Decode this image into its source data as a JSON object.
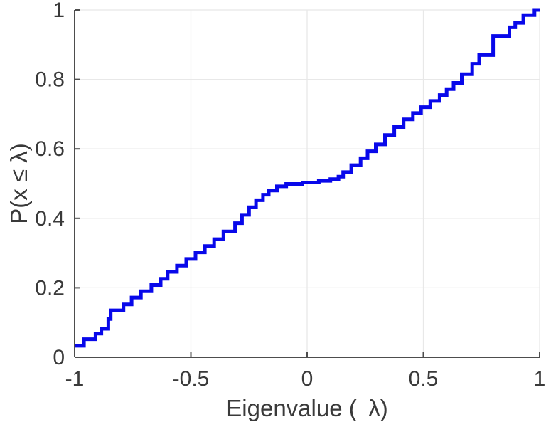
{
  "figure": {
    "background": "#ffffff"
  },
  "chart_data": {
    "type": "line",
    "subtype": "empirical-cdf-stairs",
    "title": "",
    "xlabel": "Eigenvalue ( λ)",
    "ylabel": "P(x ≤ λ)",
    "xlim": [
      -1,
      1
    ],
    "ylim": [
      0,
      1
    ],
    "grid": true,
    "legend_position": "none",
    "line_color": "#0808EA",
    "line_width": 5,
    "axis_color": "#4d4d4d",
    "grid_color": "#e8e8e8",
    "tick_label_color": "#3a3a3a",
    "label_color": "#3a3a3a",
    "xticks": [
      {
        "value": -1,
        "label": "-1"
      },
      {
        "value": -0.5,
        "label": "-0.5"
      },
      {
        "value": 0,
        "label": "0"
      },
      {
        "value": 0.5,
        "label": "0.5"
      },
      {
        "value": 1,
        "label": "1"
      }
    ],
    "yticks": [
      {
        "value": 0,
        "label": "0"
      },
      {
        "value": 0.2,
        "label": "0.2"
      },
      {
        "value": 0.4,
        "label": "0.4"
      },
      {
        "value": 0.6,
        "label": "0.6"
      },
      {
        "value": 0.8,
        "label": "0.8"
      },
      {
        "value": 1,
        "label": "1"
      }
    ],
    "series": [
      {
        "name": "eigenvalue-ecdf",
        "interpolation": "steps-post",
        "x": [
          -1.0,
          -0.96,
          -0.91,
          -0.885,
          -0.855,
          -0.845,
          -0.79,
          -0.755,
          -0.715,
          -0.67,
          -0.63,
          -0.6,
          -0.56,
          -0.52,
          -0.48,
          -0.44,
          -0.4,
          -0.36,
          -0.31,
          -0.28,
          -0.25,
          -0.22,
          -0.19,
          -0.165,
          -0.13,
          -0.09,
          -0.02,
          0.05,
          0.1,
          0.135,
          0.155,
          0.19,
          0.23,
          0.26,
          0.295,
          0.335,
          0.375,
          0.415,
          0.455,
          0.49,
          0.53,
          0.57,
          0.6,
          0.63,
          0.665,
          0.71,
          0.74,
          0.8,
          0.87,
          0.895,
          0.93,
          0.978
        ],
        "y": [
          0.033,
          0.052,
          0.068,
          0.082,
          0.11,
          0.135,
          0.152,
          0.172,
          0.19,
          0.208,
          0.226,
          0.246,
          0.264,
          0.283,
          0.302,
          0.32,
          0.34,
          0.362,
          0.386,
          0.41,
          0.432,
          0.452,
          0.468,
          0.48,
          0.492,
          0.499,
          0.503,
          0.508,
          0.513,
          0.52,
          0.533,
          0.553,
          0.573,
          0.593,
          0.613,
          0.64,
          0.663,
          0.685,
          0.703,
          0.72,
          0.738,
          0.755,
          0.772,
          0.79,
          0.815,
          0.845,
          0.87,
          0.925,
          0.95,
          0.963,
          0.985,
          1.0
        ]
      }
    ]
  }
}
